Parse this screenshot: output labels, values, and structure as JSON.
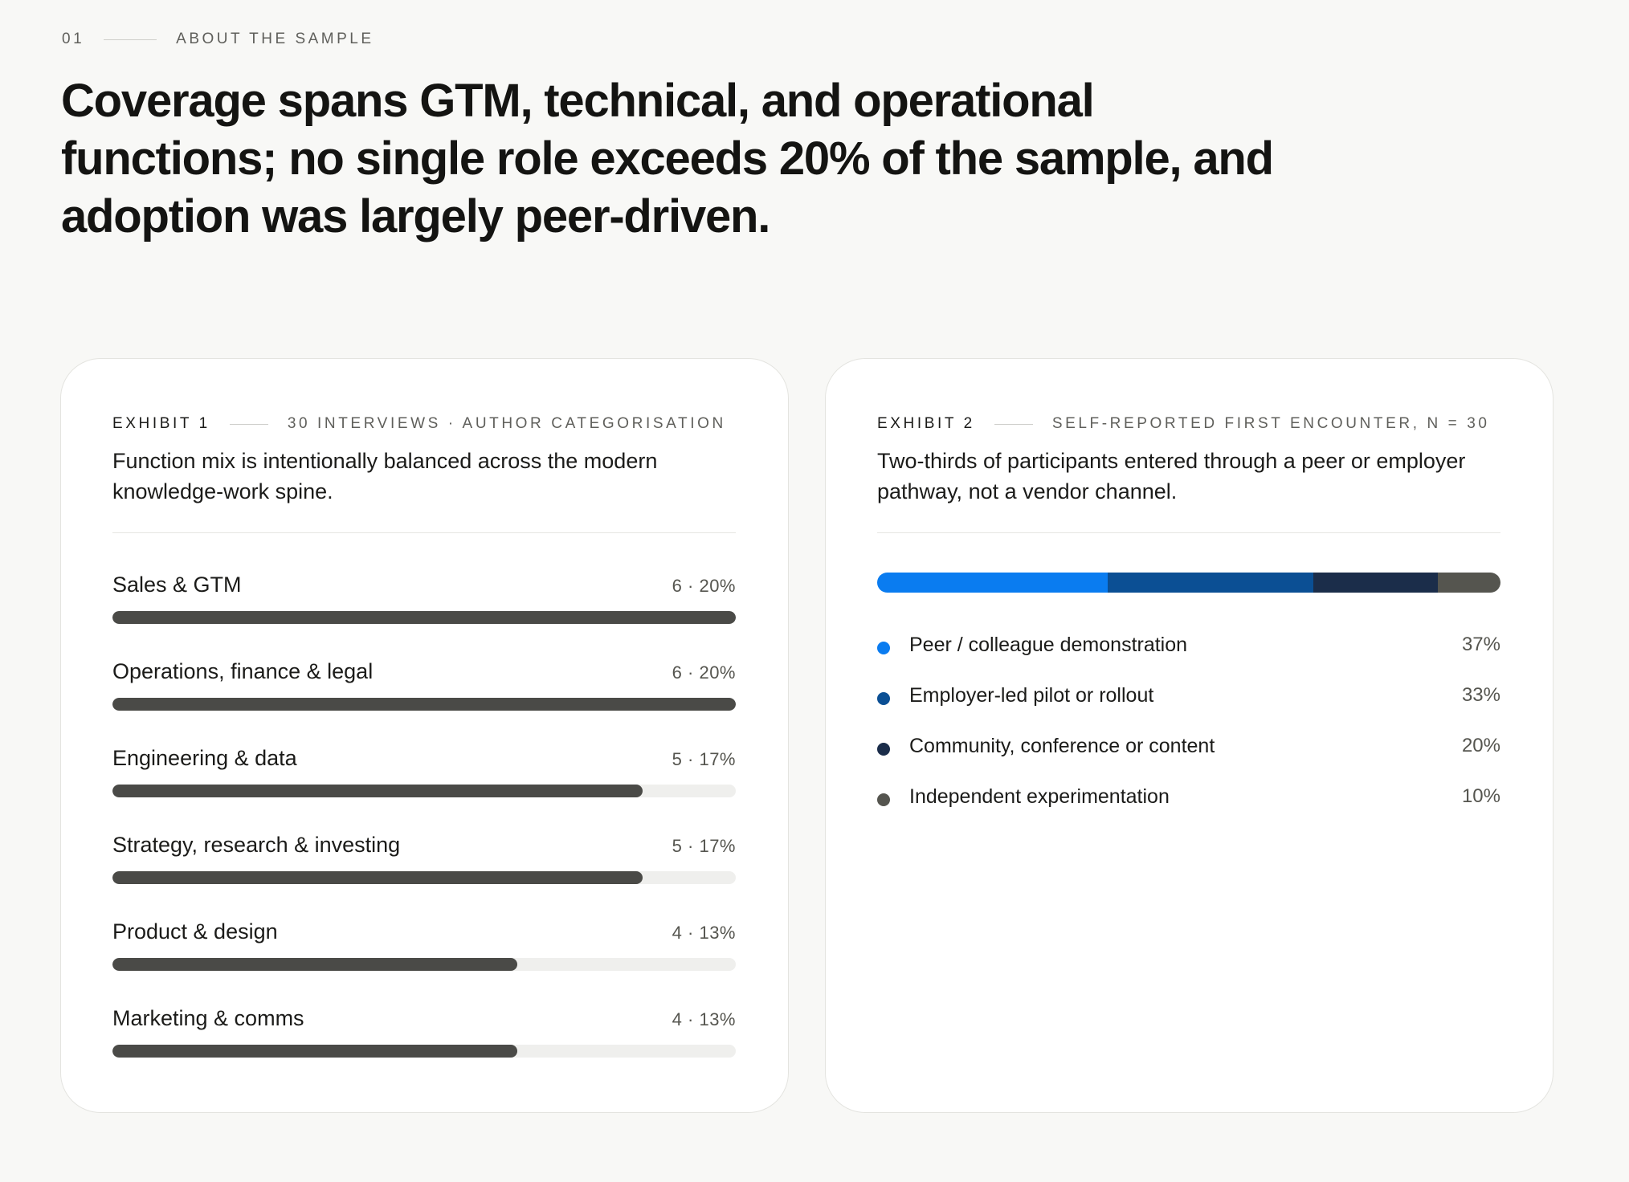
{
  "section": {
    "number": "01",
    "label": "ABOUT THE SAMPLE"
  },
  "headline": "Coverage spans GTM, technical, and operational functions; no single role exceeds 20% of the sample, and adoption was largely peer-driven.",
  "exhibit1": {
    "tag": "EXHIBIT 1",
    "source": "30 INTERVIEWS · AUTHOR CATEGORISATION",
    "title": "Function mix is intentionally balanced across the modern knowledge-work spine.",
    "bar_color": "#4a4a47",
    "track_color": "#efefed"
  },
  "exhibit2": {
    "tag": "EXHIBIT 2",
    "source": "SELF-REPORTED FIRST ENCOUNTER, N = 30",
    "title": "Two-thirds of participants entered through a peer or employer pathway, not a vendor channel."
  },
  "chart_data": [
    {
      "type": "bar",
      "orientation": "horizontal",
      "scale_max_percent": 20,
      "categories": [
        "Sales & GTM",
        "Operations, finance & legal",
        "Engineering & data",
        "Strategy, research & investing",
        "Product & design",
        "Marketing & comms"
      ],
      "counts": [
        6,
        6,
        5,
        5,
        4,
        4
      ],
      "percents": [
        20,
        20,
        17,
        17,
        13,
        13
      ],
      "value_labels": [
        "6 · 20%",
        "6 · 20%",
        "5 · 17%",
        "5 · 17%",
        "4 · 13%",
        "4 · 13%"
      ]
    },
    {
      "type": "bar",
      "orientation": "stacked-100",
      "categories": [
        "Peer / colleague demonstration",
        "Employer-led pilot or rollout",
        "Community, conference or content",
        "Independent experimentation"
      ],
      "values": [
        37,
        33,
        20,
        10
      ],
      "value_labels": [
        "37%",
        "33%",
        "20%",
        "10%"
      ],
      "colors": [
        "#0a7cf0",
        "#0b4f94",
        "#1b2d4a",
        "#55554f"
      ]
    }
  ]
}
